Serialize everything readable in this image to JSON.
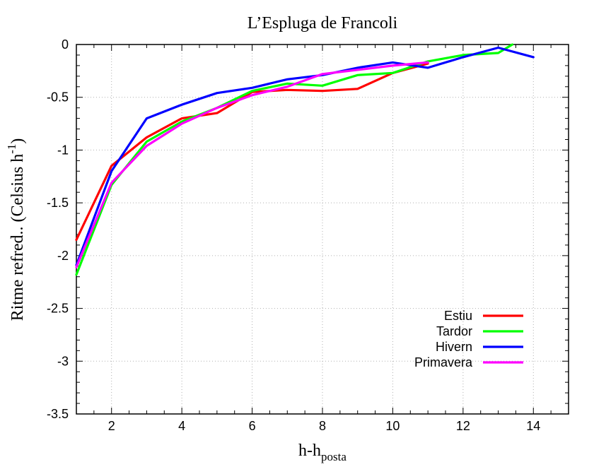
{
  "chart_data": {
    "type": "line",
    "title": "L’Espluga de Francoli",
    "xlabel": "h-h",
    "xlabel_sub": "posta",
    "ylabel": "Ritme refred.. (Celsius h",
    "ylabel_sup": "-1",
    "ylabel_tail": ")",
    "xlim": [
      1,
      15
    ],
    "ylim": [
      -3.5,
      0
    ],
    "xticks": [
      2,
      4,
      6,
      8,
      10,
      12,
      14
    ],
    "yticks": [
      0,
      -0.5,
      -1,
      -1.5,
      -2,
      -2.5,
      -3,
      -3.5
    ],
    "xtick_labels": [
      "2",
      "4",
      "6",
      "8",
      "10",
      "12",
      "14"
    ],
    "ytick_labels": [
      "0",
      "-0.5",
      "-1",
      "-1.5",
      "-2",
      "-2.5",
      "-3",
      "-3.5"
    ],
    "grid": true,
    "legend_position": "bottom-right",
    "series": [
      {
        "name": "Estiu",
        "color": "#ff0000",
        "x": [
          1,
          2,
          3,
          4,
          5,
          6,
          7,
          8,
          9,
          10,
          11
        ],
        "y": [
          -1.85,
          -1.15,
          -0.88,
          -0.7,
          -0.65,
          -0.45,
          -0.43,
          -0.44,
          -0.42,
          -0.27,
          -0.18
        ]
      },
      {
        "name": "Tardor",
        "color": "#00ff00",
        "x": [
          1,
          2,
          3,
          4,
          5,
          6,
          7,
          8,
          9,
          10,
          11,
          12,
          13,
          13.4
        ],
        "y": [
          -2.18,
          -1.33,
          -0.92,
          -0.73,
          -0.6,
          -0.44,
          -0.37,
          -0.39,
          -0.29,
          -0.27,
          -0.16,
          -0.1,
          -0.08,
          0.0
        ]
      },
      {
        "name": "Hivern",
        "color": "#0000ff",
        "x": [
          1,
          2,
          3,
          4,
          5,
          6,
          7,
          8,
          9,
          10,
          11,
          12,
          13,
          14
        ],
        "y": [
          -2.09,
          -1.2,
          -0.7,
          -0.57,
          -0.46,
          -0.41,
          -0.33,
          -0.29,
          -0.22,
          -0.17,
          -0.22,
          -0.12,
          -0.03,
          -0.12
        ]
      },
      {
        "name": "Primavera",
        "color": "#ff00ff",
        "x": [
          1,
          2,
          3,
          4,
          5,
          6,
          7,
          8,
          9,
          10,
          11
        ],
        "y": [
          -2.11,
          -1.31,
          -0.96,
          -0.75,
          -0.6,
          -0.48,
          -0.4,
          -0.28,
          -0.24,
          -0.2,
          -0.17
        ]
      }
    ]
  }
}
